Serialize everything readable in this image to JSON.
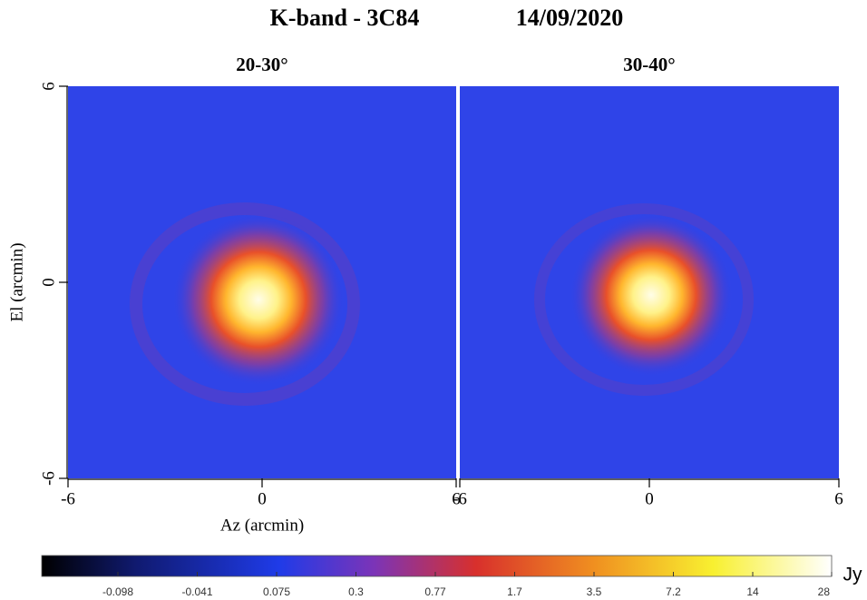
{
  "title": "K-band - 3C84",
  "date": "14/09/2020",
  "chart_data": [
    {
      "type": "heatmap",
      "title": "20-30°",
      "x_label": "Az (arcmin)",
      "y_label": "El (arcmin)",
      "xlim": [
        -6,
        6
      ],
      "xticks": [
        -6,
        0,
        6
      ],
      "ylim": [
        -6,
        6
      ],
      "yticks": [
        -6,
        0,
        6
      ]
    },
    {
      "type": "heatmap",
      "title": "30-40°",
      "xlim": [
        -6,
        6
      ],
      "xticks": [
        -6,
        0,
        6
      ]
    }
  ],
  "colorbar": {
    "label": "Jy",
    "ticks": [
      -0.098,
      -0.041,
      0.075,
      0.3,
      0.77,
      1.7,
      3.5,
      7.2,
      14,
      28
    ]
  }
}
